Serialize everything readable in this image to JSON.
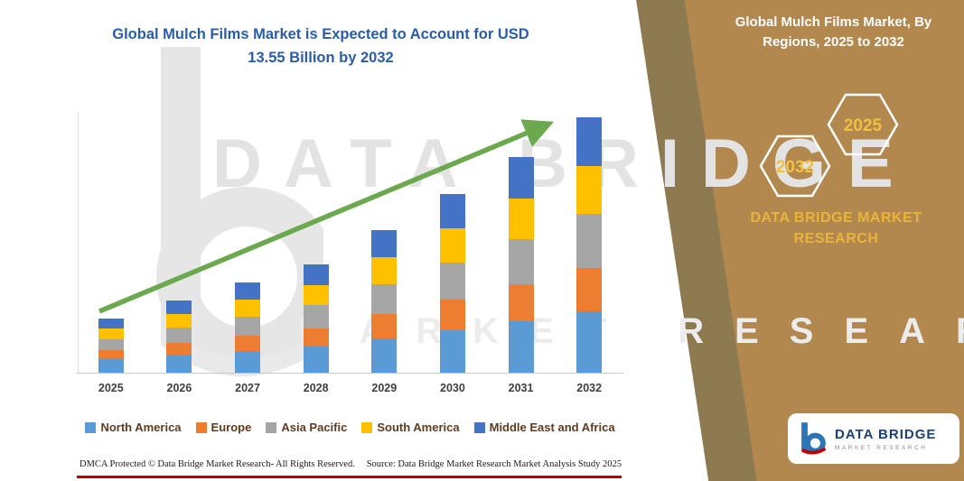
{
  "title": {
    "text": "Global Mulch Films Market is Expected to Account for USD 13.55 Billion by 2032"
  },
  "right_panel": {
    "heading": "Global Mulch Films Market, By Regions, 2025 to 2032",
    "hex_left": "2032",
    "hex_right": "2025",
    "brand_text": "DATA BRIDGE MARKET RESEARCH",
    "panel_color": "#b2884e",
    "stripe_color": "#8e7a50",
    "gold": "#e8b43c"
  },
  "watermark": {
    "line1": "DATA BRIDGE",
    "line2": "MARKET RESEARCH"
  },
  "logo_badge": {
    "name": "DATA BRIDGE",
    "subtitle": "MARKET RESEARCH",
    "navy": "#1c3f77"
  },
  "footer": {
    "left": "DMCA Protected © Data Bridge Market Research-  All Rights Reserved.",
    "source": "Source: Data Bridge Market Research  Market Analysis Study 2025",
    "line_color": "#c00000"
  },
  "chart_data": {
    "type": "bar",
    "subtype": "stacked-bar",
    "title": "Global Mulch Films Market is Expected to Account for USD 13.55 Billion by 2032",
    "unit": "USD Billion",
    "categories": [
      "2025",
      "2026",
      "2027",
      "2028",
      "2029",
      "2030",
      "2031",
      "2032"
    ],
    "series": [
      {
        "name": "North America",
        "color": "#5b9bd5",
        "values": [
          0.7,
          0.92,
          1.15,
          1.38,
          1.81,
          2.27,
          2.74,
          3.25
        ]
      },
      {
        "name": "Europe",
        "color": "#ed7d31",
        "values": [
          0.49,
          0.65,
          0.82,
          0.98,
          1.28,
          1.61,
          1.94,
          2.3
        ]
      },
      {
        "name": "Asia Pacific",
        "color": "#a6a6a6",
        "values": [
          0.61,
          0.81,
          1.01,
          1.21,
          1.59,
          1.98,
          2.39,
          2.85
        ]
      },
      {
        "name": "South America",
        "color": "#ffc000",
        "values": [
          0.55,
          0.73,
          0.91,
          1.09,
          1.43,
          1.8,
          2.17,
          2.57
        ]
      },
      {
        "name": "Middle East and Africa",
        "color": "#4472c4",
        "values": [
          0.55,
          0.73,
          0.91,
          1.09,
          1.43,
          1.8,
          2.17,
          2.58
        ]
      }
    ],
    "totals": [
      2.9,
      3.85,
      4.8,
      5.75,
      7.55,
      9.45,
      11.4,
      13.55
    ],
    "ylim": [
      0,
      14.1
    ],
    "y_axis_labels_visible": false,
    "grid": false,
    "legend_position": "bottom",
    "trend_arrow": {
      "present": true,
      "color": "#6ba84e",
      "direction": "up-right"
    }
  }
}
